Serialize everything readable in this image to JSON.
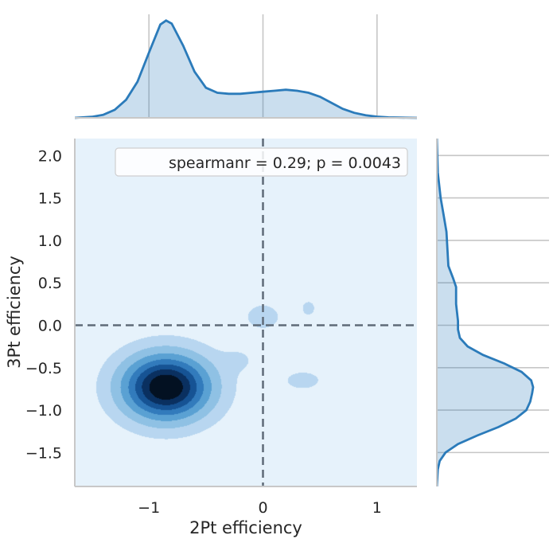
{
  "chart_data": {
    "type": "kde-jointplot",
    "xlabel": "2Pt efficiency",
    "ylabel": "3Pt efficiency",
    "xlim": [
      -1.65,
      1.35
    ],
    "ylim": [
      -1.9,
      2.2
    ],
    "x_ticks": [
      -1,
      0,
      1
    ],
    "x_tick_labels": [
      "−1",
      "0",
      "1"
    ],
    "y_ticks": [
      -1.5,
      -1.0,
      -0.5,
      0.0,
      0.5,
      1.0,
      1.5,
      2.0
    ],
    "y_tick_labels": [
      "−1.5",
      "−1.0",
      "−0.5",
      "0.0",
      "0.5",
      "1.0",
      "1.5",
      "2.0"
    ],
    "reference_lines": {
      "x": 0,
      "y": 0,
      "style": "dashed"
    },
    "annotation": "spearmanr = 0.29; p = 0.0043",
    "legend_position": "upper right",
    "grid": true,
    "colors": {
      "line": "#2b7bba",
      "fill": "#b8d4ea",
      "panel": "#e6f2fb",
      "refline": "#5f6b78"
    },
    "joint_density_components": [
      {
        "x": -0.85,
        "y": -0.73,
        "sx": 0.25,
        "sy": 0.25,
        "w": 1.0
      },
      {
        "x": 0.0,
        "y": 0.1,
        "sx": 0.12,
        "sy": 0.12,
        "w": 0.09
      },
      {
        "x": 0.4,
        "y": 0.2,
        "sx": 0.08,
        "sy": 0.12,
        "w": 0.06
      },
      {
        "x": 0.35,
        "y": -0.65,
        "sx": 0.22,
        "sy": 0.15,
        "w": 0.06
      },
      {
        "x": -0.2,
        "y": -0.4,
        "sx": 0.12,
        "sy": 0.12,
        "w": 0.05
      }
    ],
    "contour_levels": [
      0.05,
      0.15,
      0.28,
      0.42,
      0.56,
      0.7,
      0.84
    ],
    "x_marginal": {
      "x": [
        -1.65,
        -1.5,
        -1.4,
        -1.3,
        -1.2,
        -1.1,
        -1.0,
        -0.9,
        -0.85,
        -0.8,
        -0.7,
        -0.6,
        -0.5,
        -0.4,
        -0.3,
        -0.2,
        -0.1,
        0.0,
        0.1,
        0.2,
        0.3,
        0.4,
        0.5,
        0.6,
        0.7,
        0.8,
        0.9,
        1.0,
        1.1,
        1.2,
        1.35
      ],
      "density": [
        0.0,
        0.01,
        0.03,
        0.08,
        0.18,
        0.36,
        0.65,
        0.93,
        0.97,
        0.94,
        0.72,
        0.46,
        0.3,
        0.25,
        0.24,
        0.24,
        0.25,
        0.26,
        0.27,
        0.28,
        0.27,
        0.25,
        0.21,
        0.15,
        0.09,
        0.05,
        0.025,
        0.012,
        0.005,
        0.002,
        0.0
      ]
    },
    "y_marginal": {
      "y": [
        -1.9,
        -1.7,
        -1.6,
        -1.5,
        -1.4,
        -1.3,
        -1.2,
        -1.1,
        -1.0,
        -0.9,
        -0.8,
        -0.73,
        -0.65,
        -0.55,
        -0.45,
        -0.35,
        -0.25,
        -0.15,
        -0.05,
        0.05,
        0.15,
        0.25,
        0.35,
        0.45,
        0.55,
        0.7,
        0.9,
        1.1,
        1.3,
        1.5,
        1.8,
        2.2
      ],
      "density": [
        0.0,
        0.01,
        0.03,
        0.09,
        0.22,
        0.42,
        0.64,
        0.82,
        0.93,
        0.97,
        0.99,
        1.0,
        0.98,
        0.88,
        0.7,
        0.48,
        0.32,
        0.24,
        0.22,
        0.22,
        0.21,
        0.2,
        0.2,
        0.2,
        0.17,
        0.12,
        0.11,
        0.1,
        0.07,
        0.04,
        0.01,
        0.0
      ]
    }
  }
}
